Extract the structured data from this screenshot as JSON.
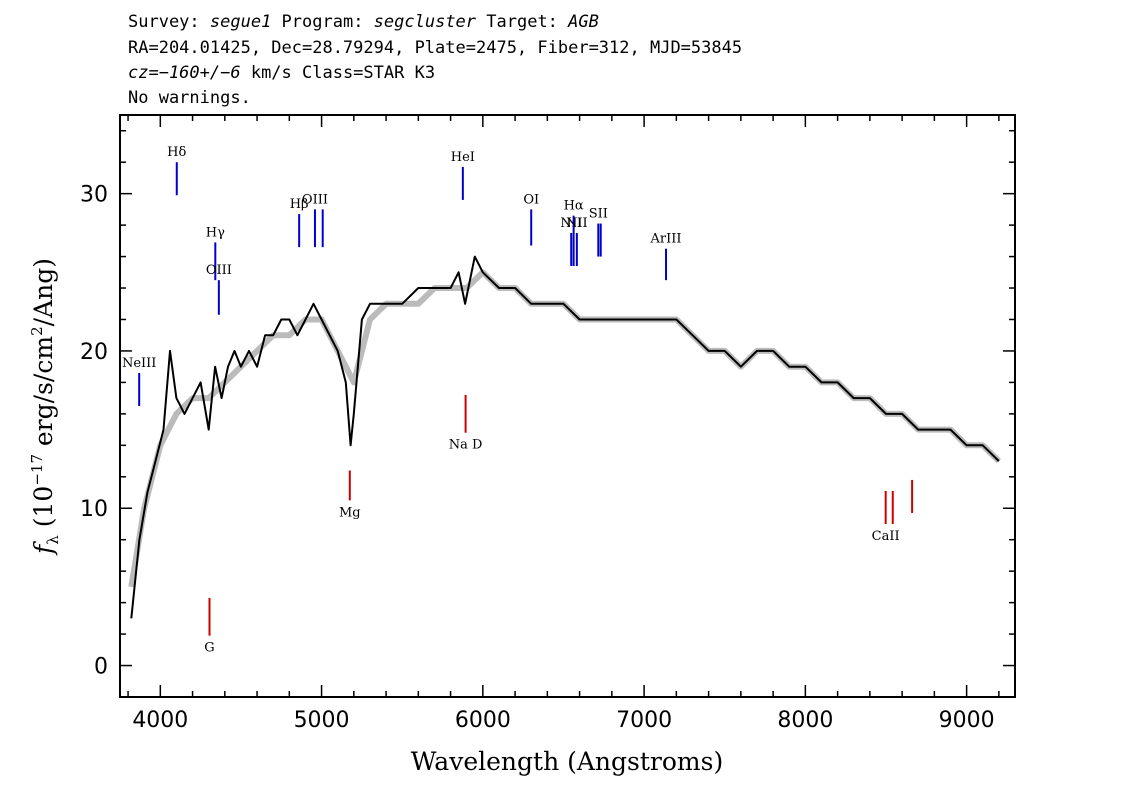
{
  "header": {
    "line1": {
      "survey_label": "Survey: ",
      "survey": "segue1",
      "program_label": " Program: ",
      "program": "segcluster",
      "target_label": " Target: ",
      "target": "AGB"
    },
    "line2": "RA=204.01425, Dec=28.79294, Plate=2475, Fiber=312, MJD=53845",
    "line3": {
      "cz": "cz=−160+/−6",
      "rest": " km/s Class=STAR K3"
    },
    "line4": "No warnings."
  },
  "chart_data": {
    "type": "line",
    "xlabel": "Wavelength (Angstroms)",
    "ylabel": "f_λ (10^-17 erg/s/cm^2/Ang)",
    "xlim": [
      3750,
      9300
    ],
    "ylim": [
      -2,
      35
    ],
    "xticks": [
      4000,
      5000,
      6000,
      7000,
      8000,
      9000
    ],
    "yticks": [
      0,
      10,
      20,
      30
    ],
    "series": [
      {
        "color": "#000000",
        "x": [
          3820,
          3870,
          3920,
          3970,
          4020,
          4060,
          4100,
          4150,
          4200,
          4250,
          4300,
          4340,
          4380,
          4420,
          4460,
          4500,
          4550,
          4600,
          4650,
          4700,
          4750,
          4800,
          4850,
          4900,
          4950,
          5000,
          5050,
          5100,
          5150,
          5180,
          5200,
          5250,
          5300,
          5400,
          5500,
          5600,
          5700,
          5800,
          5850,
          5890,
          5950,
          6000,
          6100,
          6200,
          6300,
          6400,
          6500,
          6600,
          6700,
          6800,
          6900,
          7000,
          7100,
          7200,
          7300,
          7400,
          7500,
          7600,
          7700,
          7800,
          7900,
          8000,
          8100,
          8200,
          8300,
          8400,
          8500,
          8600,
          8700,
          8800,
          8900,
          9000,
          9100,
          9200
        ],
        "y": [
          3,
          8,
          11,
          13,
          15,
          20,
          17,
          16,
          17,
          18,
          15,
          19,
          17,
          19,
          20,
          19,
          20,
          19,
          21,
          21,
          22,
          22,
          21,
          22,
          23,
          22,
          21,
          20,
          18,
          14,
          16,
          22,
          23,
          23,
          23,
          24,
          24,
          24,
          25,
          23,
          26,
          25,
          24,
          24,
          23,
          23,
          23,
          22,
          22,
          22,
          22,
          22,
          22,
          22,
          21,
          20,
          20,
          19,
          20,
          20,
          19,
          19,
          18,
          18,
          17,
          17,
          16,
          16,
          15,
          15,
          15,
          14,
          14,
          13
        ]
      },
      {
        "name": "",
        "color": "#bbbbbb",
        "x": [
          3820,
          3900,
          4000,
          4100,
          4200,
          4300,
          4400,
          4500,
          4600,
          4700,
          4800,
          4900,
          5000,
          5100,
          5200,
          5300,
          5400,
          5500,
          5600,
          5700,
          5800,
          5900,
          6000,
          6100,
          6200,
          6300,
          6400,
          6500,
          6600,
          6700,
          6800,
          6900,
          7000,
          7100,
          7200,
          7300,
          7400,
          7500,
          7600,
          7700,
          7800,
          7900,
          8000,
          8100,
          8200,
          8300,
          8400,
          8500,
          8600,
          8700,
          8800,
          8900,
          9000,
          9100,
          9200
        ],
        "y": [
          5,
          10,
          14,
          16,
          17,
          17,
          18,
          19,
          20,
          21,
          21,
          22,
          22,
          20,
          18,
          22,
          23,
          23,
          23,
          24,
          24,
          24,
          25,
          24,
          24,
          23,
          23,
          23,
          22,
          22,
          22,
          22,
          22,
          22,
          22,
          21,
          20,
          20,
          19,
          20,
          20,
          19,
          19,
          18,
          18,
          17,
          17,
          16,
          16,
          15,
          15,
          15,
          14,
          14,
          13
        ]
      }
    ],
    "annotations": [
      {
        "label": "NeIII",
        "x": 3869,
        "color": "#0000cc",
        "y_top": 18.6,
        "y_bottom": 16.5
      },
      {
        "label": "Hδ",
        "x": 4102,
        "color": "#0000cc",
        "y_top": 32.0,
        "y_bottom": 29.9
      },
      {
        "label": "Hγ",
        "x": 4341,
        "color": "#0000cc",
        "y_top": 26.9,
        "y_bottom": 24.5
      },
      {
        "label": "OIII",
        "x": 4363,
        "color": "#0000cc",
        "y_top": 24.5,
        "y_bottom": 22.3
      },
      {
        "label": "Hβ",
        "x": 4861,
        "color": "#0000cc",
        "y_top": 28.7,
        "y_bottom": 26.6
      },
      {
        "label": "OIII",
        "x": 4959,
        "color": "#0000cc",
        "y_top": 29.0,
        "y_bottom": 26.6
      },
      {
        "label": "",
        "x": 5007,
        "color": "#0000cc",
        "y_top": 29.0,
        "y_bottom": 26.6
      },
      {
        "label": "HeI",
        "x": 5876,
        "color": "#0000cc",
        "y_top": 31.7,
        "y_bottom": 29.6
      },
      {
        "label": "OI",
        "x": 6300,
        "color": "#0000cc",
        "y_top": 29.0,
        "y_bottom": 26.7
      },
      {
        "label": "NII",
        "x": 6548,
        "color": "#0000cc",
        "y_top": 27.5,
        "y_bottom": 25.4
      },
      {
        "label": "Hα",
        "x": 6563,
        "color": "#0000cc",
        "y_top": 28.6,
        "y_bottom": 25.4
      },
      {
        "label": "NII",
        "x": 6583,
        "color": "#0000cc",
        "y_top": 27.5,
        "y_bottom": 25.4
      },
      {
        "label": "SII",
        "x": 6716,
        "color": "#0000cc",
        "y_top": 28.1,
        "y_bottom": 26.0
      },
      {
        "label": "",
        "x": 6731,
        "color": "#0000cc",
        "y_top": 28.1,
        "y_bottom": 26.0
      },
      {
        "label": "ArIII",
        "x": 7136,
        "color": "#0000cc",
        "y_top": 26.5,
        "y_bottom": 24.5
      },
      {
        "label": "G",
        "x": 4305,
        "color": "#cc0000",
        "y_top": 4.3,
        "y_bottom": 1.9
      },
      {
        "label": "Mg",
        "x": 5175,
        "color": "#cc0000",
        "y_top": 12.4,
        "y_bottom": 10.5
      },
      {
        "label": "Na D",
        "x": 5893,
        "color": "#cc0000",
        "y_top": 17.2,
        "y_bottom": 14.8
      },
      {
        "label": "CaII",
        "x": 8498,
        "color": "#cc0000",
        "y_top": 11.1,
        "y_bottom": 9.0
      },
      {
        "label": "",
        "x": 8542,
        "color": "#cc0000",
        "y_top": 11.1,
        "y_bottom": 9.0
      },
      {
        "label": "",
        "x": 8662,
        "color": "#cc0000",
        "y_top": 11.8,
        "y_bottom": 9.7
      }
    ]
  }
}
